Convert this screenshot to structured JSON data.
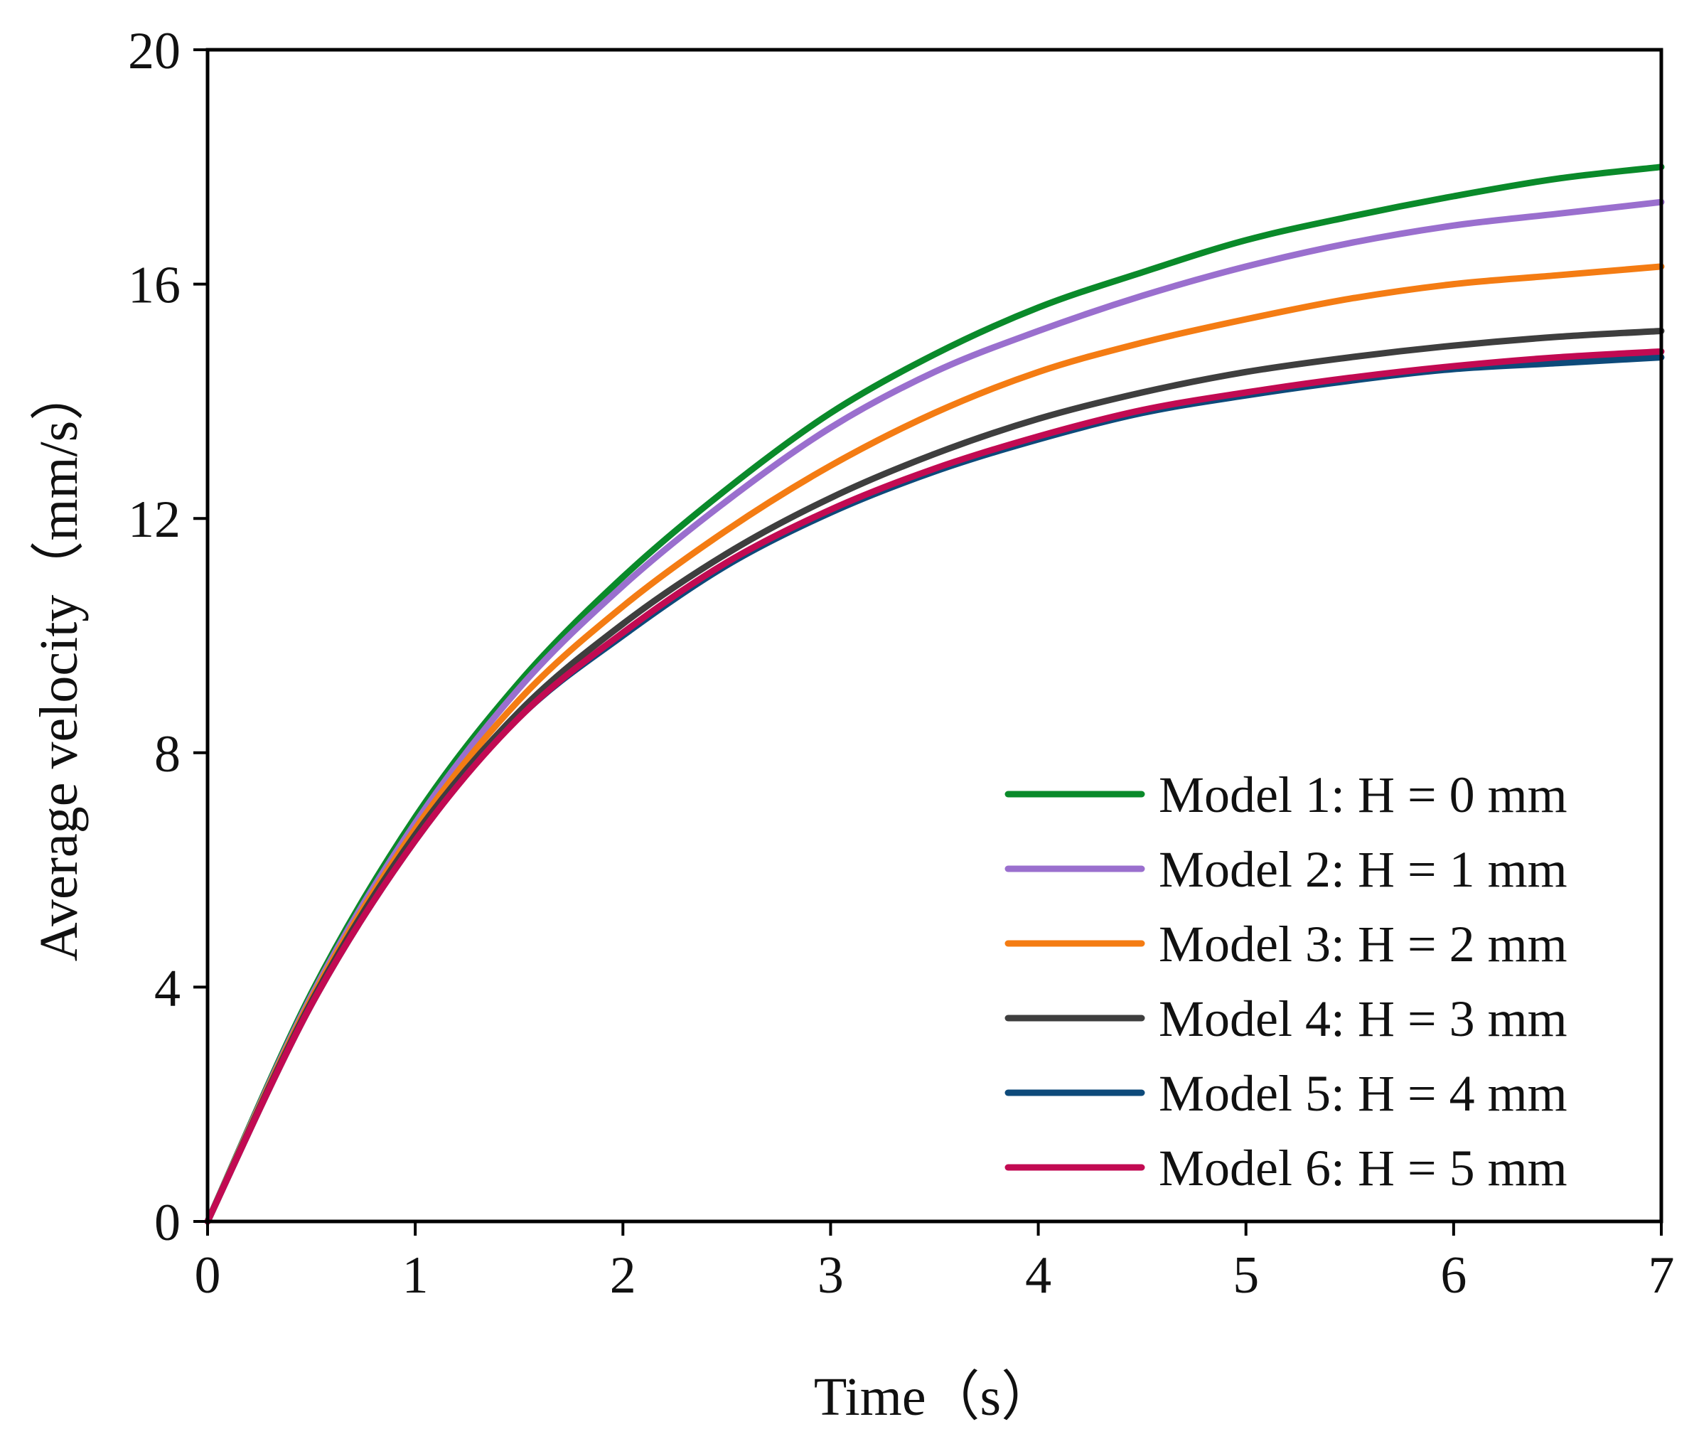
{
  "chart_data": {
    "type": "line",
    "title": "",
    "xlabel": "Time（s）",
    "ylabel": "Average velocity（mm/s）",
    "xlim": [
      0,
      7
    ],
    "ylim": [
      0,
      20
    ],
    "x_ticks": [
      0,
      1,
      2,
      3,
      4,
      5,
      6,
      7
    ],
    "y_ticks": [
      0,
      4,
      8,
      12,
      16,
      20
    ],
    "x_tick_labels": [
      "0",
      "1",
      "2",
      "3",
      "4",
      "5",
      "6",
      "7"
    ],
    "y_tick_labels": [
      "0",
      "4",
      "8",
      "12",
      "16",
      "20"
    ],
    "grid": false,
    "legend_position": "bottom-right",
    "x": [
      0,
      0.5,
      1,
      1.5,
      2,
      2.5,
      3,
      3.5,
      4,
      4.5,
      5,
      5.5,
      6,
      6.5,
      7
    ],
    "series": [
      {
        "name": "Model 1: H = 0 mm",
        "color": "#0a8a2a",
        "values": [
          0,
          3.9,
          6.9,
          9.2,
          11.0,
          12.5,
          13.8,
          14.8,
          15.6,
          16.2,
          16.75,
          17.15,
          17.5,
          17.8,
          18.0
        ]
      },
      {
        "name": "Model 2: H = 1 mm",
        "color": "#9a6fce",
        "values": [
          0,
          3.85,
          6.8,
          9.1,
          10.85,
          12.3,
          13.55,
          14.5,
          15.2,
          15.8,
          16.3,
          16.7,
          17.0,
          17.2,
          17.4
        ]
      },
      {
        "name": "Model 3: H = 2 mm",
        "color": "#f47c13",
        "values": [
          0,
          3.8,
          6.7,
          8.9,
          10.5,
          11.8,
          12.9,
          13.8,
          14.5,
          15.0,
          15.4,
          15.75,
          16.0,
          16.15,
          16.3
        ]
      },
      {
        "name": "Model 4: H = 3 mm",
        "color": "#3e3e3e",
        "values": [
          0,
          3.75,
          6.6,
          8.7,
          10.2,
          11.4,
          12.35,
          13.1,
          13.7,
          14.15,
          14.5,
          14.75,
          14.95,
          15.1,
          15.2
        ]
      },
      {
        "name": "Model 5: H = 4 mm",
        "color": "#0d4a7a",
        "values": [
          0,
          3.7,
          6.5,
          8.6,
          10.0,
          11.2,
          12.1,
          12.8,
          13.35,
          13.8,
          14.1,
          14.35,
          14.55,
          14.65,
          14.75
        ]
      },
      {
        "name": "Model 6: H = 5 mm",
        "color": "#c20a52",
        "values": [
          0,
          3.7,
          6.5,
          8.6,
          10.05,
          11.25,
          12.15,
          12.85,
          13.4,
          13.85,
          14.15,
          14.4,
          14.6,
          14.75,
          14.85
        ]
      }
    ]
  }
}
